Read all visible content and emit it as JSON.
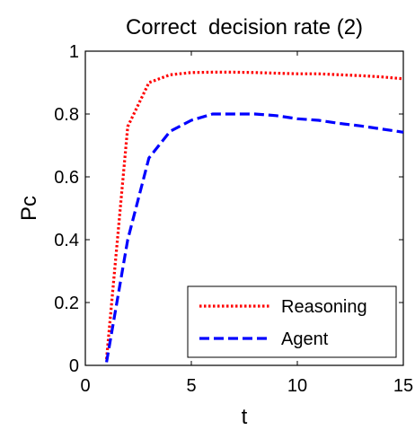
{
  "chart_data": {
    "type": "line",
    "title": "Correct  decision rate (2)",
    "xlabel": "t",
    "ylabel": "Pc",
    "xlim": [
      0,
      15
    ],
    "ylim": [
      0,
      1
    ],
    "xticks": [
      0,
      5,
      10,
      15
    ],
    "yticks": [
      0,
      0.2,
      0.4,
      0.6,
      0.8,
      1
    ],
    "xtick_labels": [
      "0",
      "5",
      "10",
      "15"
    ],
    "ytick_labels": [
      "0",
      "0.2",
      "0.4",
      "0.6",
      "0.8",
      "1"
    ],
    "grid": false,
    "legend_position": "bottom-right",
    "series": [
      {
        "name": "Reasoning",
        "color": "#ff0000",
        "style": "dotted",
        "x": [
          1,
          2,
          3,
          4,
          5,
          6,
          7,
          8,
          9,
          10,
          11,
          12,
          13,
          14,
          15
        ],
        "y": [
          0.02,
          0.76,
          0.9,
          0.925,
          0.932,
          0.933,
          0.933,
          0.932,
          0.93,
          0.928,
          0.928,
          0.925,
          0.922,
          0.918,
          0.912
        ]
      },
      {
        "name": "Agent",
        "color": "#0000ff",
        "style": "dashed",
        "x": [
          1,
          2,
          3,
          4,
          5,
          6,
          7,
          8,
          9,
          10,
          11,
          12,
          13,
          14,
          15
        ],
        "y": [
          0.01,
          0.4,
          0.66,
          0.745,
          0.78,
          0.8,
          0.8,
          0.8,
          0.795,
          0.785,
          0.78,
          0.77,
          0.762,
          0.752,
          0.742
        ]
      }
    ]
  }
}
